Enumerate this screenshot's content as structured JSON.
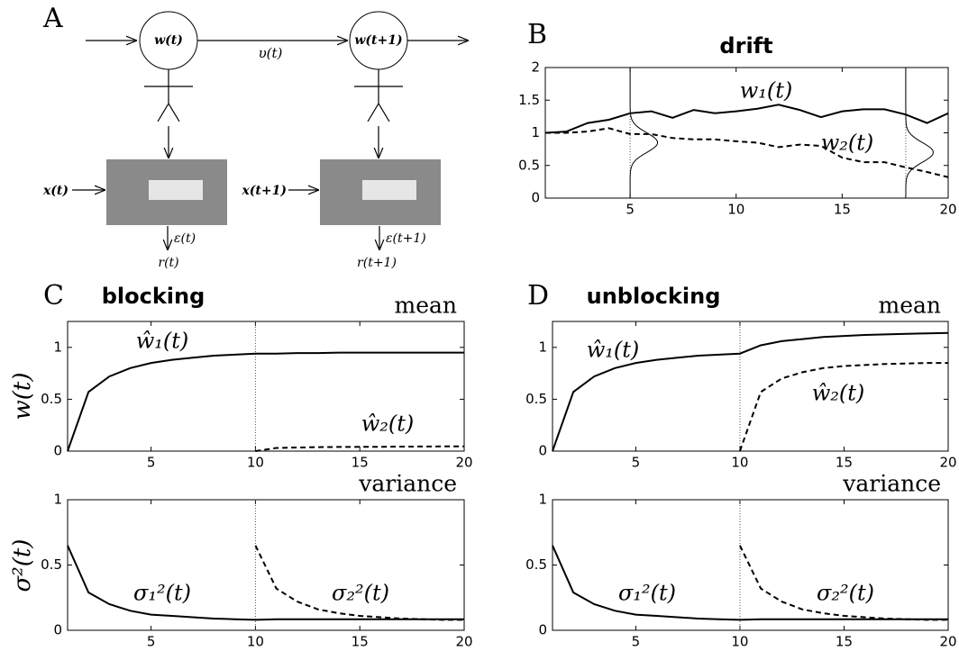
{
  "diagram": {
    "label": "A",
    "nodes": [
      "w(t)",
      "w(t+1)"
    ],
    "transition": "υ(t)",
    "inputs": [
      "x(t)",
      "x(t+1)"
    ],
    "errors": [
      "ε(t)",
      "ε(t+1)"
    ],
    "rewards": [
      "r(t)",
      "r(t+1)"
    ]
  },
  "chart_data": [
    {
      "type": "line",
      "panel": "B",
      "title": "drift",
      "x": [
        1,
        2,
        3,
        4,
        5,
        6,
        7,
        8,
        9,
        10,
        11,
        12,
        13,
        14,
        15,
        16,
        17,
        18,
        19,
        20
      ],
      "series": [
        {
          "name": "w₁(t)",
          "color": "#000000",
          "style": "solid",
          "values": [
            1.0,
            1.02,
            1.15,
            1.2,
            1.3,
            1.33,
            1.23,
            1.35,
            1.3,
            1.33,
            1.37,
            1.43,
            1.35,
            1.24,
            1.33,
            1.36,
            1.36,
            1.28,
            1.15,
            1.3
          ]
        },
        {
          "name": "w₂(t)",
          "color": "#000000",
          "style": "dashed",
          "values": [
            1.0,
            1.0,
            1.02,
            1.07,
            0.98,
            0.98,
            0.92,
            0.9,
            0.9,
            0.87,
            0.85,
            0.78,
            0.82,
            0.8,
            0.62,
            0.55,
            0.55,
            0.47,
            0.4,
            0.32
          ]
        }
      ],
      "vlines": [
        5,
        18
      ],
      "xlim": [
        1,
        20
      ],
      "xticks": [
        5,
        10,
        15,
        20
      ],
      "ylim": [
        0,
        2
      ],
      "yticks": [
        0,
        0.5,
        1,
        1.5,
        2
      ]
    },
    {
      "type": "line",
      "panel": "C",
      "title": "blocking",
      "corner_label": "mean",
      "ylabel": "w(t)",
      "x": [
        1,
        2,
        3,
        4,
        5,
        6,
        7,
        8,
        9,
        10,
        11,
        12,
        13,
        14,
        15,
        16,
        17,
        18,
        19,
        20
      ],
      "series": [
        {
          "name": "ŵ₁(t)",
          "color": "#000000",
          "style": "solid",
          "values": [
            0,
            0.57,
            0.72,
            0.8,
            0.85,
            0.88,
            0.9,
            0.92,
            0.93,
            0.94,
            0.94,
            0.945,
            0.945,
            0.95,
            0.95,
            0.95,
            0.95,
            0.95,
            0.95,
            0.95
          ]
        },
        {
          "name": "ŵ₂(t)",
          "color": "#000000",
          "style": "dashed",
          "values": [
            null,
            null,
            null,
            null,
            null,
            null,
            null,
            null,
            null,
            0,
            0.03,
            0.035,
            0.038,
            0.04,
            0.041,
            0.042,
            0.043,
            0.044,
            0.045,
            0.045
          ]
        }
      ],
      "vlines": [
        10
      ],
      "xlim": [
        1,
        20
      ],
      "xticks": [
        5,
        10,
        15,
        20
      ],
      "ylim": [
        0,
        1.25
      ],
      "yticks": [
        0,
        0.5,
        1
      ]
    },
    {
      "type": "line",
      "corner_label": "variance",
      "ylabel": "σ²(t)",
      "x": [
        1,
        2,
        3,
        4,
        5,
        6,
        7,
        8,
        9,
        10,
        11,
        12,
        13,
        14,
        15,
        16,
        17,
        18,
        19,
        20
      ],
      "series": [
        {
          "name": "σ₁²(t)",
          "color": "#000000",
          "style": "solid",
          "values": [
            0.65,
            0.29,
            0.2,
            0.15,
            0.12,
            0.11,
            0.1,
            0.09,
            0.085,
            0.08,
            0.085,
            0.085,
            0.085,
            0.085,
            0.085,
            0.085,
            0.085,
            0.085,
            0.085,
            0.085
          ]
        },
        {
          "name": "σ₂²(t)",
          "color": "#000000",
          "style": "dashed",
          "values": [
            null,
            null,
            null,
            null,
            null,
            null,
            null,
            null,
            null,
            0.65,
            0.32,
            0.22,
            0.16,
            0.13,
            0.11,
            0.1,
            0.09,
            0.085,
            0.08,
            0.08
          ]
        }
      ],
      "vlines": [
        10
      ],
      "xlim": [
        1,
        20
      ],
      "xticks": [
        5,
        10,
        15,
        20
      ],
      "ylim": [
        0,
        1
      ],
      "yticks": [
        0,
        0.5,
        1
      ]
    },
    {
      "type": "line",
      "panel": "D",
      "title": "unblocking",
      "corner_label": "mean",
      "x": [
        1,
        2,
        3,
        4,
        5,
        6,
        7,
        8,
        9,
        10,
        11,
        12,
        13,
        14,
        15,
        16,
        17,
        18,
        19,
        20
      ],
      "series": [
        {
          "name": "ŵ₁(t)",
          "color": "#000000",
          "style": "solid",
          "values": [
            0,
            0.57,
            0.72,
            0.8,
            0.85,
            0.88,
            0.9,
            0.92,
            0.93,
            0.94,
            1.02,
            1.06,
            1.08,
            1.1,
            1.11,
            1.12,
            1.125,
            1.13,
            1.135,
            1.14
          ]
        },
        {
          "name": "ŵ₂(t)",
          "color": "#000000",
          "style": "dashed",
          "values": [
            null,
            null,
            null,
            null,
            null,
            null,
            null,
            null,
            null,
            0,
            0.57,
            0.7,
            0.76,
            0.8,
            0.82,
            0.83,
            0.84,
            0.845,
            0.85,
            0.85
          ]
        }
      ],
      "vlines": [
        10
      ],
      "xlim": [
        1,
        20
      ],
      "xticks": [
        5,
        10,
        15,
        20
      ],
      "ylim": [
        0,
        1.25
      ],
      "yticks": [
        0,
        0.5,
        1
      ]
    },
    {
      "type": "line",
      "corner_label": "variance",
      "x": [
        1,
        2,
        3,
        4,
        5,
        6,
        7,
        8,
        9,
        10,
        11,
        12,
        13,
        14,
        15,
        16,
        17,
        18,
        19,
        20
      ],
      "series": [
        {
          "name": "σ₁²(t)",
          "color": "#000000",
          "style": "solid",
          "values": [
            0.65,
            0.29,
            0.2,
            0.15,
            0.12,
            0.11,
            0.1,
            0.09,
            0.085,
            0.08,
            0.085,
            0.085,
            0.085,
            0.085,
            0.085,
            0.085,
            0.085,
            0.085,
            0.085,
            0.085
          ]
        },
        {
          "name": "σ₂²(t)",
          "color": "#000000",
          "style": "dashed",
          "values": [
            null,
            null,
            null,
            null,
            null,
            null,
            null,
            null,
            null,
            0.65,
            0.32,
            0.22,
            0.16,
            0.13,
            0.11,
            0.1,
            0.09,
            0.085,
            0.08,
            0.08
          ]
        }
      ],
      "vlines": [
        10
      ],
      "xlim": [
        1,
        20
      ],
      "xticks": [
        5,
        10,
        15,
        20
      ],
      "ylim": [
        0,
        1
      ],
      "yticks": [
        0,
        0.5,
        1
      ]
    }
  ]
}
